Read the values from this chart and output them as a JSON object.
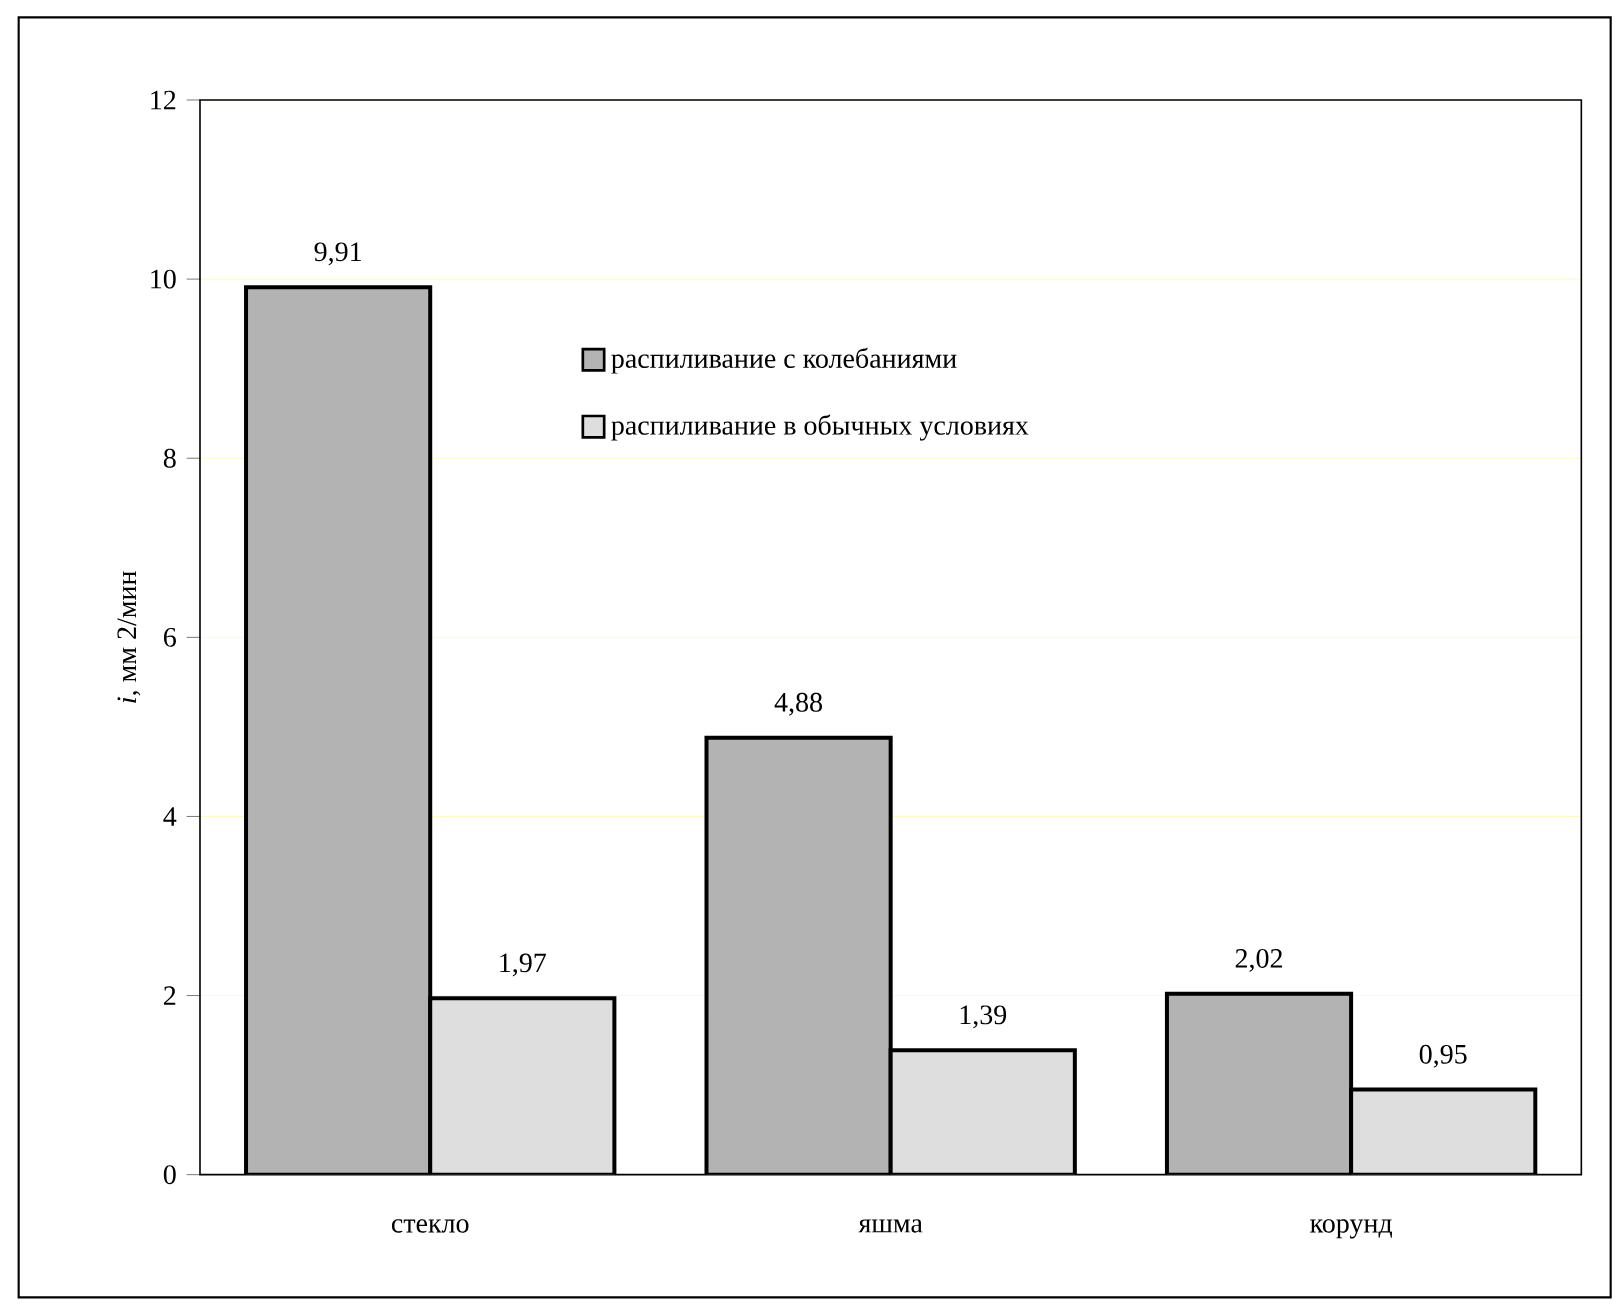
{
  "chart_data": {
    "type": "bar",
    "ylabel": "*i*, мм 2/мин",
    "categories": [
      "стекло",
      "яшма",
      "корунд"
    ],
    "series": [
      {
        "name": "распиливание с колебаниями",
        "color": "#b3b3b3",
        "values": [
          9.91,
          4.88,
          2.02
        ],
        "value_labels": [
          "9,91",
          "4,88",
          "2,02"
        ]
      },
      {
        "name": "распиливание в обычных условиях",
        "color": "#dedede",
        "values": [
          1.97,
          1.39,
          0.95
        ],
        "value_labels": [
          "1,97",
          "1,39",
          "0,95"
        ]
      }
    ],
    "ylim": [
      0,
      12
    ],
    "yticks": [
      0,
      2,
      4,
      6,
      8,
      10,
      12
    ],
    "grid": "y",
    "legend": "top"
  }
}
